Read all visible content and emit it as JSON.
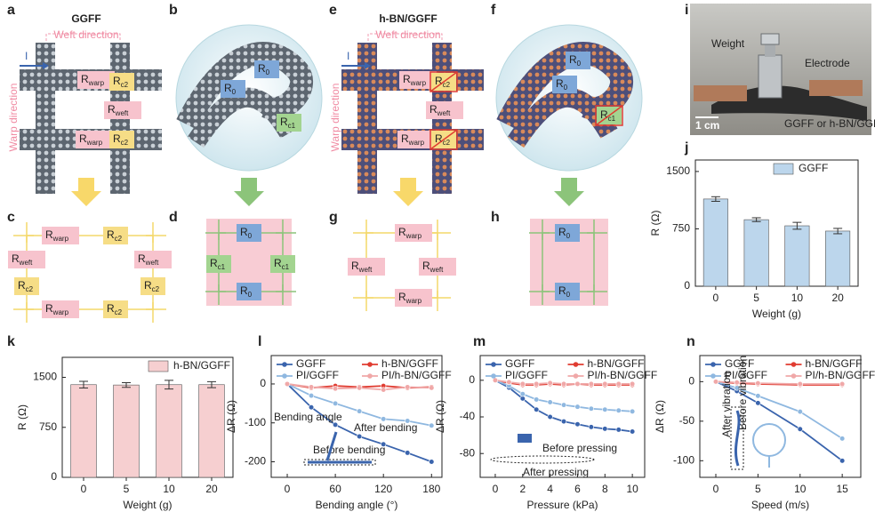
{
  "diagrams": [
    {
      "letter": "a",
      "title": "GGFF",
      "weft": "Weft direction",
      "warp": "Warp direction",
      "current": "I",
      "labels": [
        {
          "main": "R",
          "sub": "warp"
        },
        {
          "main": "R",
          "sub": "c2"
        },
        {
          "main": "R",
          "sub": "weft"
        },
        {
          "main": "R",
          "sub": "warp"
        },
        {
          "main": "R",
          "sub": "c2"
        }
      ]
    },
    {
      "letter": "b",
      "labels": [
        {
          "main": "R",
          "sub": "0"
        },
        {
          "main": "R",
          "sub": "0"
        },
        {
          "main": "R",
          "sub": "c1"
        }
      ]
    },
    {
      "letter": "c",
      "labels": [
        {
          "main": "R",
          "sub": "warp"
        },
        {
          "main": "R",
          "sub": "c2"
        },
        {
          "main": "R",
          "sub": "weft"
        },
        {
          "main": "R",
          "sub": "weft"
        },
        {
          "main": "R",
          "sub": "c2"
        },
        {
          "main": "R",
          "sub": "c2"
        },
        {
          "main": "R",
          "sub": "warp"
        },
        {
          "main": "R",
          "sub": "c2"
        }
      ]
    },
    {
      "letter": "d",
      "labels": [
        {
          "main": "R",
          "sub": "0"
        },
        {
          "main": "R",
          "sub": "c1"
        },
        {
          "main": "R",
          "sub": "c1"
        },
        {
          "main": "R",
          "sub": "0"
        }
      ]
    },
    {
      "letter": "e",
      "title": "h-BN/GGFF",
      "weft": "Weft direction",
      "warp": "Warp direction",
      "current": "I",
      "labels": [
        {
          "main": "R",
          "sub": "warp"
        },
        {
          "main": "R",
          "sub": "c2"
        },
        {
          "main": "R",
          "sub": "weft"
        },
        {
          "main": "R",
          "sub": "warp"
        },
        {
          "main": "R",
          "sub": "c2"
        }
      ]
    },
    {
      "letter": "f",
      "labels": [
        {
          "main": "R",
          "sub": "0"
        },
        {
          "main": "R",
          "sub": "0"
        },
        {
          "main": "R",
          "sub": "c1"
        }
      ]
    },
    {
      "letter": "g",
      "labels": [
        {
          "main": "R",
          "sub": "warp"
        },
        {
          "main": "R",
          "sub": "weft"
        },
        {
          "main": "R",
          "sub": "weft"
        },
        {
          "main": "R",
          "sub": "warp"
        }
      ]
    },
    {
      "letter": "h",
      "labels": [
        {
          "main": "R",
          "sub": "0"
        },
        {
          "main": "R",
          "sub": "0"
        }
      ]
    }
  ],
  "photo": {
    "letter": "i",
    "weight": "Weight",
    "electrode": "Electrode",
    "sample": "GGFF or h-BN/GGFF",
    "scale": "1 cm"
  },
  "chart_data": [
    {
      "panel": "j",
      "type": "bar",
      "categories": [
        "0",
        "5",
        "10",
        "20"
      ],
      "series": [
        {
          "name": "GGFF",
          "color": "#bcd6ec",
          "values": [
            1140,
            870,
            790,
            721
          ],
          "errors": [
            30,
            25,
            45,
            35
          ]
        }
      ],
      "ylim": [
        0,
        1650
      ],
      "yticks": [
        0,
        750,
        1500
      ],
      "ylabel": "R (Ω)",
      "xlabel": "Weight (g)",
      "legend": "upper right"
    },
    {
      "panel": "k",
      "type": "bar",
      "categories": [
        "0",
        "5",
        "10",
        "20"
      ],
      "series": [
        {
          "name": "h-BN/GGFF",
          "color": "#f6cfd0",
          "values": [
            1390,
            1385,
            1390,
            1390
          ],
          "errors": [
            50,
            35,
            65,
            45
          ]
        }
      ],
      "ylim": [
        0,
        1800
      ],
      "yticks": [
        0,
        750,
        1500
      ],
      "ylabel": "R (Ω)",
      "xlabel": "Weight (g)",
      "legend": "upper right"
    },
    {
      "panel": "l",
      "type": "line",
      "x": [
        0,
        30,
        60,
        90,
        120,
        150,
        180
      ],
      "series": [
        {
          "name": "GGFF",
          "color": "#3a64ad",
          "values": [
            0,
            -60,
            -105,
            -135,
            -155,
            -177,
            -200
          ]
        },
        {
          "name": "h-BN/GGFF",
          "color": "#e03c31",
          "values": [
            0,
            -10,
            -5,
            -8,
            -5,
            -10,
            -8
          ]
        },
        {
          "name": "PI/GGFF",
          "color": "#8fb8e0",
          "values": [
            0,
            -30,
            -50,
            -70,
            -90,
            -95,
            -107
          ]
        },
        {
          "name": "PI/h-BN/GGFF",
          "color": "#f0a8a8",
          "values": [
            0,
            -8,
            -12,
            -10,
            -15,
            -8,
            -10
          ]
        }
      ],
      "xlim": [
        -20,
        193
      ],
      "xticks": [
        0,
        60,
        120,
        180
      ],
      "ylim": [
        -240,
        73
      ],
      "yticks": [
        -200,
        -100,
        0
      ],
      "ylabel": "ΔR (Ω)",
      "xlabel": "Bending angle (°)",
      "legend": "upper left",
      "annotations": [
        "Bending angle",
        "After bending",
        "Before bending"
      ]
    },
    {
      "panel": "m",
      "type": "line",
      "x": [
        0,
        1,
        2,
        3,
        4,
        5,
        6,
        7,
        8,
        9,
        10
      ],
      "series": [
        {
          "name": "GGFF",
          "color": "#3a64ad",
          "values": [
            0,
            -8,
            -20,
            -32,
            -40,
            -45,
            -48,
            -51,
            -53,
            -54,
            -56
          ]
        },
        {
          "name": "h-BN/GGFF",
          "color": "#e03c31",
          "values": [
            0,
            -3,
            -5,
            -5,
            -4,
            -5,
            -4,
            -5,
            -5,
            -5,
            -5
          ]
        },
        {
          "name": "PI/GGFF",
          "color": "#8fb8e0",
          "values": [
            0,
            -6,
            -15,
            -21,
            -24,
            -27,
            -29,
            -31,
            -32,
            -33,
            -34
          ]
        },
        {
          "name": "PI/h-BN/GGFF",
          "color": "#f0a8a8",
          "values": [
            0,
            -2,
            -4,
            -4,
            -3,
            -4,
            -4,
            -4,
            -4,
            -4,
            -4
          ]
        }
      ],
      "xlim": [
        -1.1,
        10.9
      ],
      "xticks": [
        0,
        2,
        4,
        6,
        8,
        10
      ],
      "ylim": [
        -106,
        27
      ],
      "yticks": [
        -80,
        -40,
        0
      ],
      "ylabel": "ΔR (Ω)",
      "xlabel": "Pressure (kPa)",
      "legend": "upper left",
      "annotations": [
        "Before pressing",
        "After pressing"
      ]
    },
    {
      "panel": "n",
      "type": "line",
      "x": [
        0,
        2.5,
        5,
        10,
        15
      ],
      "series": [
        {
          "name": "GGFF",
          "color": "#3a64ad",
          "values": [
            0,
            -12,
            -27,
            -60,
            -100
          ]
        },
        {
          "name": "h-BN/GGFF",
          "color": "#e03c31",
          "values": [
            0,
            -2,
            -3,
            -4,
            -4
          ]
        },
        {
          "name": "PI/GGFF",
          "color": "#8fb8e0",
          "values": [
            0,
            -8,
            -18,
            -38,
            -72
          ]
        },
        {
          "name": "PI/h-BN/GGFF",
          "color": "#f0a8a8",
          "values": [
            0,
            -1,
            -2,
            -3,
            -3
          ]
        }
      ],
      "xlim": [
        -1.9,
        17.2
      ],
      "xticks": [
        0,
        5,
        10,
        15
      ],
      "ylim": [
        -121,
        33
      ],
      "yticks": [
        -100,
        -50,
        0
      ],
      "ylabel": "ΔR (Ω)",
      "xlabel": "Speed (m/s)",
      "legend": "upper left",
      "annotations": [
        "After vibration",
        "Before vibration"
      ]
    }
  ]
}
